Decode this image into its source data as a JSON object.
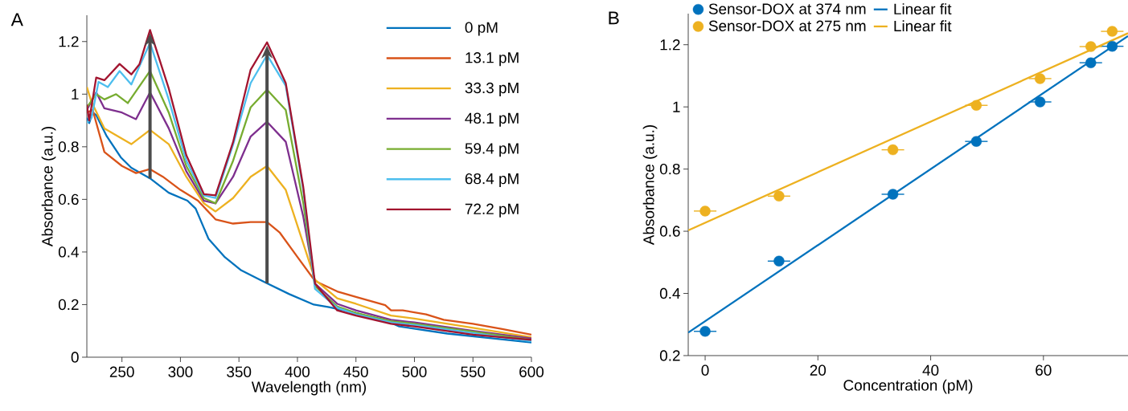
{
  "chart_data": [
    {
      "type": "line",
      "title": "A",
      "xlabel": "Wavelength (nm)",
      "ylabel": "Absorbance (a.u.)",
      "xlim": [
        220,
        600
      ],
      "xticks": [
        250,
        300,
        350,
        400,
        450,
        500,
        550,
        600
      ],
      "ylim": [
        0,
        1.3
      ],
      "yticks": [
        0,
        0.2,
        0.4,
        0.6,
        0.8,
        1,
        1.2
      ],
      "legend": "top right",
      "series": [
        {
          "name": "0 pM",
          "color": "#0072bd",
          "x": [
            220,
            222,
            225,
            228,
            237,
            249,
            258,
            274,
            290,
            306,
            313,
            324,
            338,
            352,
            372,
            393,
            414,
            427,
            450,
            482,
            487,
            528,
            600
          ],
          "values": [
            0.91,
            0.89,
            0.93,
            0.92,
            0.84,
            0.76,
            0.72,
            0.68,
            0.625,
            0.595,
            0.565,
            0.45,
            0.38,
            0.33,
            0.285,
            0.24,
            0.2,
            0.19,
            0.168,
            0.127,
            0.117,
            0.09,
            0.056
          ]
        },
        {
          "name": "13.1 pM",
          "color": "#d95319",
          "x": [
            220,
            225,
            235,
            250,
            262,
            274,
            285,
            300,
            315,
            330,
            345,
            360,
            374,
            385,
            400,
            415,
            434,
            450,
            475,
            480,
            490,
            510,
            525,
            550,
            575,
            600
          ],
          "values": [
            0.93,
            0.94,
            0.78,
            0.727,
            0.7,
            0.715,
            0.686,
            0.636,
            0.595,
            0.524,
            0.508,
            0.514,
            0.514,
            0.473,
            0.381,
            0.29,
            0.25,
            0.229,
            0.198,
            0.178,
            0.178,
            0.163,
            0.142,
            0.127,
            0.107,
            0.086
          ]
        },
        {
          "name": "33.3 pM",
          "color": "#edb120",
          "x": [
            220,
            224,
            235,
            258,
            274,
            290,
            305,
            320,
            330,
            345,
            360,
            374,
            390,
            405,
            415,
            434,
            450,
            480,
            500,
            550,
            600
          ],
          "values": [
            1.027,
            0.97,
            0.87,
            0.81,
            0.864,
            0.81,
            0.686,
            0.585,
            0.554,
            0.605,
            0.686,
            0.727,
            0.636,
            0.432,
            0.295,
            0.224,
            0.203,
            0.158,
            0.147,
            0.112,
            0.076
          ]
        },
        {
          "name": "48.1 pM",
          "color": "#7e2f8e",
          "x": [
            220,
            228,
            235,
            250,
            262,
            274,
            290,
            305,
            320,
            330,
            345,
            360,
            374,
            390,
            405,
            415,
            434,
            450,
            480,
            500,
            550,
            600
          ],
          "values": [
            0.94,
            1.007,
            0.946,
            0.93,
            0.905,
            1.007,
            0.87,
            0.707,
            0.595,
            0.585,
            0.686,
            0.839,
            0.895,
            0.819,
            0.534,
            0.28,
            0.203,
            0.178,
            0.142,
            0.132,
            0.1,
            0.071
          ]
        },
        {
          "name": "59.4 pM",
          "color": "#77ac30",
          "x": [
            220,
            228,
            235,
            245,
            255,
            274,
            290,
            305,
            320,
            330,
            345,
            360,
            374,
            390,
            405,
            415,
            434,
            450,
            480,
            500,
            550,
            600
          ],
          "values": [
            0.95,
            1.0,
            0.98,
            1.0,
            0.966,
            1.088,
            0.93,
            0.727,
            0.605,
            0.585,
            0.747,
            0.95,
            1.017,
            0.94,
            0.585,
            0.27,
            0.193,
            0.168,
            0.137,
            0.127,
            0.097,
            0.066
          ]
        },
        {
          "name": "68.4 pM",
          "color": "#4dbeee",
          "x": [
            220,
            224,
            230,
            238,
            248,
            258,
            274,
            290,
            305,
            320,
            330,
            345,
            360,
            374,
            390,
            405,
            415,
            434,
            450,
            480,
            500,
            550,
            600
          ],
          "values": [
            0.89,
            0.91,
            1.047,
            1.027,
            1.088,
            1.037,
            1.195,
            0.98,
            0.747,
            0.615,
            0.605,
            0.808,
            1.042,
            1.149,
            1.032,
            0.636,
            0.26,
            0.188,
            0.163,
            0.132,
            0.122,
            0.092,
            0.061
          ]
        },
        {
          "name": "72.2 pM",
          "color": "#a2142f",
          "x": [
            220,
            222,
            228,
            235,
            248,
            258,
            265,
            274,
            290,
            305,
            320,
            330,
            345,
            360,
            374,
            390,
            405,
            415,
            434,
            450,
            480,
            500,
            550,
            600
          ],
          "values": [
            0.96,
            0.9,
            1.063,
            1.053,
            1.115,
            1.075,
            1.114,
            1.244,
            1.022,
            0.768,
            0.62,
            0.615,
            0.818,
            1.093,
            1.197,
            1.042,
            0.646,
            0.28,
            0.178,
            0.158,
            0.127,
            0.117,
            0.086,
            0.066
          ]
        }
      ]
    },
    {
      "type": "scatter",
      "title": "B",
      "xlabel": "Concentration (pM)",
      "ylabel": "Absorbance (a.u.)",
      "xlim": [
        -3,
        75
      ],
      "xticks": [
        0,
        20,
        40,
        60
      ],
      "ylim": [
        0.2,
        1.3
      ],
      "yticks": [
        0.2,
        0.4,
        0.6,
        0.8,
        1,
        1.2
      ],
      "legend": "top left",
      "series": [
        {
          "name": "Sensor-DOX at 374 nm",
          "type": "scatter",
          "marker": "circle",
          "color": "#0072bd",
          "x": [
            0,
            13.1,
            33.3,
            48.1,
            59.4,
            68.4,
            72.2
          ],
          "values": [
            0.278,
            0.504,
            0.719,
            0.889,
            1.016,
            1.142,
            1.195
          ],
          "xerrors": [
            2,
            2,
            2,
            2,
            2,
            2,
            2
          ]
        },
        {
          "name": "Linear fit",
          "type": "line",
          "marker": "none",
          "color": "#0072bd",
          "x": [
            -3,
            75
          ],
          "values": [
            0.274,
            1.228
          ]
        },
        {
          "name": "Sensor-DOX at 275 nm",
          "type": "scatter",
          "marker": "circle",
          "color": "#edb120",
          "x": [
            0,
            13.1,
            33.3,
            48.1,
            59.4,
            68.4,
            72.2
          ],
          "values": [
            0.665,
            0.713,
            0.862,
            1.005,
            1.091,
            1.194,
            1.243
          ],
          "xerrors": [
            2,
            2,
            2,
            2,
            2,
            2,
            2
          ]
        },
        {
          "name": "Linear fit",
          "type": "line",
          "marker": "none",
          "color": "#edb120",
          "x": [
            -3,
            75
          ],
          "values": [
            0.603,
            1.237
          ]
        }
      ]
    }
  ]
}
